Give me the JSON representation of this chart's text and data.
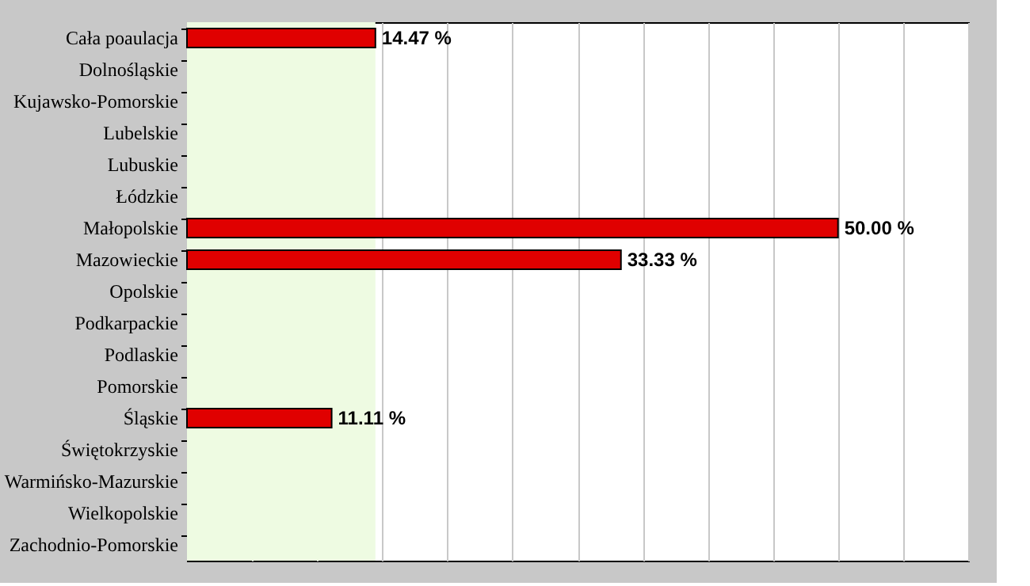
{
  "chart_data": {
    "type": "bar",
    "orientation": "horizontal",
    "categories": [
      "Cała poaulacja",
      "Dolnośląskie",
      "Kujawsko-Pomorskie",
      "Lubelskie",
      "Lubuskie",
      "Łódzkie",
      "Małopolskie",
      "Mazowieckie",
      "Opolskie",
      "Podkarpackie",
      "Podlaskie",
      "Pomorskie",
      "Śląskie",
      "Świętokrzyskie",
      "Warmińsko-Mazurskie",
      "Wielkopolskie",
      "Zachodnio-Pomorskie"
    ],
    "values": [
      14.47,
      0,
      0,
      0,
      0,
      0,
      50.0,
      33.33,
      0,
      0,
      0,
      0,
      11.11,
      0,
      0,
      0,
      0
    ],
    "value_labels": [
      "14.47 %",
      null,
      null,
      null,
      null,
      null,
      "50.00 %",
      "33.33 %",
      null,
      null,
      null,
      null,
      "11.11 %",
      null,
      null,
      null,
      null
    ],
    "color": "#e00000",
    "xlim": [
      0,
      60
    ],
    "xticks": [
      {
        "value": 0,
        "label": null
      },
      {
        "value": 5,
        "label": null
      },
      {
        "value": 10,
        "label": null
      },
      {
        "value": 15,
        "label": null
      },
      {
        "value": 20,
        "label": null
      },
      {
        "value": 25,
        "label": null
      },
      {
        "value": 30,
        "label": null
      },
      {
        "value": 35,
        "label": null
      },
      {
        "value": 40,
        "label": null
      },
      {
        "value": 45,
        "label": null
      },
      {
        "value": 50,
        "label": null
      },
      {
        "value": 55,
        "label": null
      },
      {
        "value": 60,
        "label": null
      }
    ],
    "bands": [
      {
        "axis": "x",
        "from": 0,
        "to": 14.47,
        "label": null,
        "color": "#eefbe2"
      }
    ],
    "grid": "x",
    "tick_labels": "y"
  }
}
